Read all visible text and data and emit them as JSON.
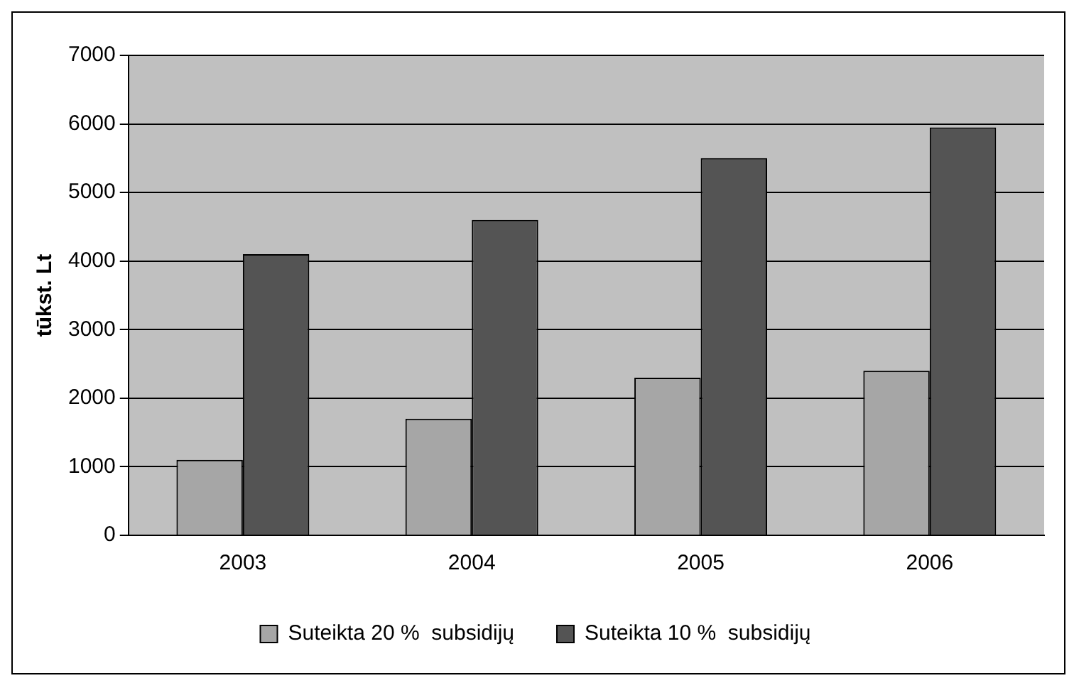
{
  "chart_data": {
    "type": "bar",
    "ylabel": "tūkst. Lt",
    "categories": [
      "2003",
      "2004",
      "2005",
      "2006"
    ],
    "series": [
      {
        "name": "Suteikta 20 %  subsidijų",
        "color": "#a6a6a6",
        "values": [
          1100,
          1700,
          2300,
          2400
        ]
      },
      {
        "name": "Suteikta 10 %  subsidijų",
        "color": "#545454",
        "values": [
          4100,
          4600,
          5500,
          5950
        ]
      }
    ],
    "ylim": [
      0,
      7000
    ],
    "yticks": [
      0,
      1000,
      2000,
      3000,
      4000,
      5000,
      6000,
      7000
    ],
    "grid": "y",
    "legend": "bottom"
  }
}
